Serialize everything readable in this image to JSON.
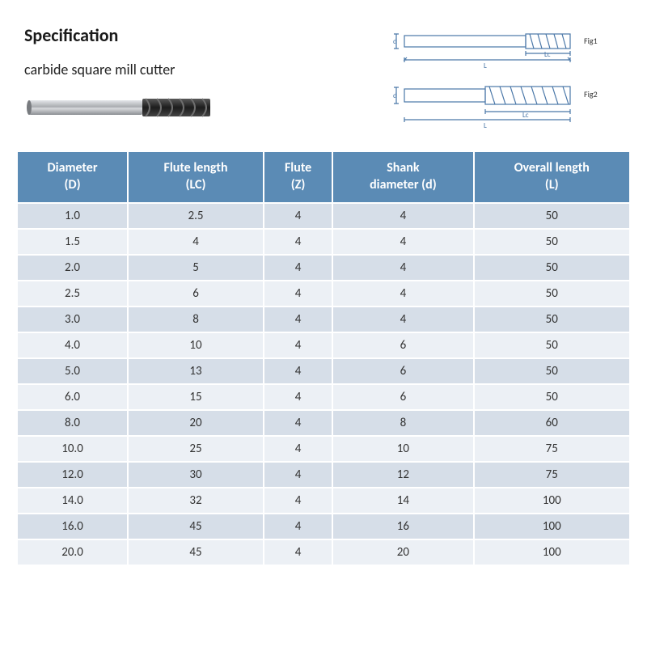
{
  "title": "Specification",
  "subtitle": "carbide square mill cutter",
  "diagram_labels": {
    "fig1": "Fig1",
    "fig2": "Fig2",
    "L": "L",
    "Lc": "Lc",
    "d": "d"
  },
  "table": {
    "header_bg": "#5b8bb5",
    "header_fg": "#ffffff",
    "row_band_colors": [
      "#d6dee8",
      "#ecf0f5"
    ],
    "border_color": "#ffffff",
    "header_fontsize": 16,
    "cell_fontsize": 15,
    "columns": [
      {
        "line1": "Diameter",
        "line2": "(D)"
      },
      {
        "line1": "Flute length",
        "line2": "(LC)"
      },
      {
        "line1": "Flute",
        "line2": "(Z)"
      },
      {
        "line1": "Shank",
        "line2": "diameter (d)"
      },
      {
        "line1": "Overall length",
        "line2": "(L)"
      }
    ],
    "rows": [
      [
        "1.0",
        "2.5",
        "4",
        "4",
        "50"
      ],
      [
        "1.5",
        "4",
        "4",
        "4",
        "50"
      ],
      [
        "2.0",
        "5",
        "4",
        "4",
        "50"
      ],
      [
        "2.5",
        "6",
        "4",
        "4",
        "50"
      ],
      [
        "3.0",
        "8",
        "4",
        "4",
        "50"
      ],
      [
        "4.0",
        "10",
        "4",
        "6",
        "50"
      ],
      [
        "5.0",
        "13",
        "4",
        "6",
        "50"
      ],
      [
        "6.0",
        "15",
        "4",
        "6",
        "50"
      ],
      [
        "8.0",
        "20",
        "4",
        "8",
        "60"
      ],
      [
        "10.0",
        "25",
        "4",
        "10",
        "75"
      ],
      [
        "12.0",
        "30",
        "4",
        "12",
        "75"
      ],
      [
        "14.0",
        "32",
        "4",
        "14",
        "100"
      ],
      [
        "16.0",
        "45",
        "4",
        "16",
        "100"
      ],
      [
        "20.0",
        "45",
        "4",
        "20",
        "100"
      ]
    ]
  },
  "colors": {
    "page_bg": "#ffffff",
    "text": "#333333",
    "diagram_stroke": "#4a77a8",
    "tool_shank": "#b9bcc0",
    "tool_dark": "#2e2e2e"
  }
}
